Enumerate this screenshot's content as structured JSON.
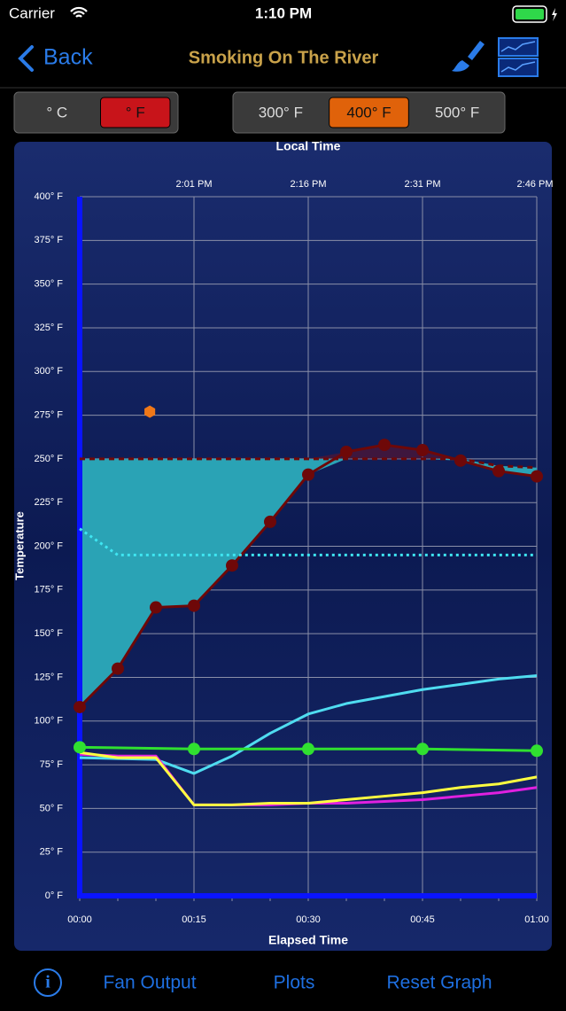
{
  "status_bar": {
    "carrier": "Carrier",
    "time": "1:10 PM"
  },
  "nav": {
    "back": "Back",
    "title": "Smoking On The River"
  },
  "unit_toggle": {
    "options": [
      "° C",
      "° F"
    ],
    "selected": 1,
    "selected_color": "#c8141a"
  },
  "range_toggle": {
    "options": [
      "300° F",
      "400° F",
      "500° F"
    ],
    "selected": 1,
    "selected_color": "#e0620a"
  },
  "chart_data": {
    "type": "line",
    "top_axis_label": "Local Time",
    "x_label": "Elapsed Time",
    "y_label": "Temperature",
    "x": [
      0,
      5,
      10,
      15,
      20,
      25,
      30,
      35,
      40,
      45,
      50,
      55,
      60
    ],
    "xlim": [
      0,
      60
    ],
    "xticks": [
      {
        "value": 0,
        "label": "00:00"
      },
      {
        "value": 15,
        "label": "00:15"
      },
      {
        "value": 30,
        "label": "00:30"
      },
      {
        "value": 45,
        "label": "00:45"
      },
      {
        "value": 60,
        "label": "01:00"
      }
    ],
    "x2ticks": [
      {
        "value": 15,
        "label": "2:01 PM"
      },
      {
        "value": 30,
        "label": "2:16 PM"
      },
      {
        "value": 45,
        "label": "2:31 PM"
      },
      {
        "value": 60,
        "label": "2:46 PM"
      }
    ],
    "ylim": [
      0,
      400
    ],
    "yticks": [
      {
        "value": 0,
        "label": "0° F"
      },
      {
        "value": 25,
        "label": "25° F"
      },
      {
        "value": 50,
        "label": "50° F"
      },
      {
        "value": 75,
        "label": "75° F"
      },
      {
        "value": 100,
        "label": "100° F"
      },
      {
        "value": 125,
        "label": "125° F"
      },
      {
        "value": 150,
        "label": "150° F"
      },
      {
        "value": 175,
        "label": "175° F"
      },
      {
        "value": 200,
        "label": "200° F"
      },
      {
        "value": 225,
        "label": "225° F"
      },
      {
        "value": 250,
        "label": "250° F"
      },
      {
        "value": 275,
        "label": "275° F"
      },
      {
        "value": 300,
        "label": "300° F"
      },
      {
        "value": 325,
        "label": "325° F"
      },
      {
        "value": 350,
        "label": "350° F"
      },
      {
        "value": 375,
        "label": "375° F"
      },
      {
        "value": 400,
        "label": "400° F"
      }
    ],
    "grid": true,
    "series": [
      {
        "color": "#6e0808",
        "values": [
          108,
          130,
          165,
          166,
          189,
          214,
          241,
          254,
          258,
          255,
          249,
          243,
          240
        ],
        "style": "solid",
        "markers": "circle",
        "fill_color": "rgba(120,16,32,0.45)"
      },
      {
        "color": "#6e0808",
        "values": [
          250,
          250,
          250,
          250,
          250,
          250,
          250,
          250,
          250,
          250,
          250,
          246,
          245
        ],
        "style": "dashed",
        "fill_color": "#2aa3b5"
      },
      {
        "color": "#3fe6f2",
        "values": [
          210,
          195,
          195,
          195,
          195,
          195,
          195,
          195,
          195,
          195,
          195,
          195,
          195
        ],
        "style": "dotted"
      },
      {
        "color": "#4fdcf0",
        "values": [
          79,
          78.5,
          78,
          70,
          80,
          93,
          104,
          110,
          114,
          118,
          121,
          124,
          126
        ],
        "style": "solid"
      },
      {
        "color": "#ffff40",
        "values": [
          82,
          79,
          79,
          52,
          52,
          53,
          53,
          55,
          57,
          59,
          62,
          64,
          68
        ],
        "style": "solid"
      },
      {
        "color": "#e020e0",
        "values": [
          81,
          80,
          80,
          52,
          52,
          52,
          53,
          53,
          54,
          55,
          57,
          59,
          62
        ],
        "style": "solid"
      },
      {
        "color": "#30e030",
        "x": [
          0,
          15,
          30,
          45,
          60
        ],
        "values": [
          85,
          84,
          84,
          84,
          83
        ],
        "style": "solid",
        "markers": "circle"
      },
      {
        "color": "#f07818",
        "x": [
          9.2
        ],
        "values": [
          277
        ],
        "style": "none",
        "markers": "hexagon"
      }
    ]
  },
  "toolbar": {
    "info": "i",
    "buttons": [
      "Fan Output",
      "Plots",
      "Reset Graph"
    ]
  }
}
